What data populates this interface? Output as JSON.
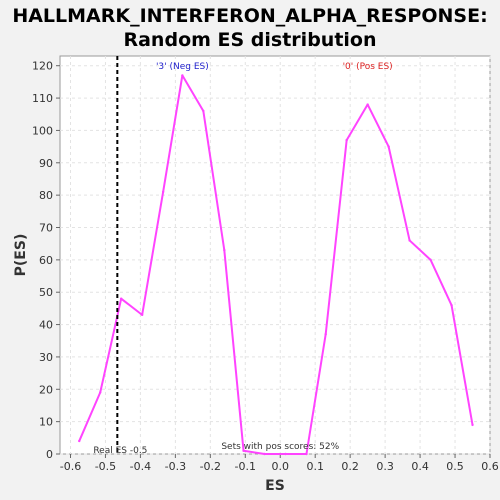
{
  "chart_data": {
    "type": "line",
    "title_lines": [
      "HALLMARK_INTERFERON_ALPHA_RESPONSE:",
      "Random ES distribution"
    ],
    "xlabel": "ES",
    "ylabel": "P(ES)",
    "xlim": [
      -0.63,
      0.6
    ],
    "ylim": [
      0,
      123
    ],
    "x_ticks": [
      -0.6,
      -0.5,
      -0.4,
      -0.3,
      -0.2,
      -0.1,
      0.0,
      0.1,
      0.2,
      0.3,
      0.4,
      0.5,
      0.6
    ],
    "x_tick_labels": [
      "-0.6",
      "-0.5",
      "-0.4",
      "-0.3",
      "-0.2",
      "-0.1",
      "0.0",
      "0.1",
      "0.2",
      "0.3",
      "0.4",
      "0.5",
      "0.6"
    ],
    "y_ticks": [
      0,
      10,
      20,
      30,
      40,
      50,
      60,
      70,
      80,
      90,
      100,
      110,
      120
    ],
    "y_tick_labels": [
      "0",
      "10",
      "20",
      "30",
      "40",
      "50",
      "60",
      "70",
      "80",
      "90",
      "100",
      "110",
      "120"
    ],
    "grid": true,
    "series": [
      {
        "color": "#ff44ff",
        "x": [
          -0.575,
          -0.515,
          -0.455,
          -0.395,
          -0.335,
          -0.28,
          -0.22,
          -0.16,
          -0.105,
          -0.045,
          0.015,
          0.075,
          0.13,
          0.19,
          0.25,
          0.31,
          0.37,
          0.43,
          0.49,
          0.55
        ],
        "y": [
          4,
          19,
          48,
          43,
          81,
          117,
          106,
          63,
          1,
          0,
          0,
          0,
          37,
          97,
          108,
          95,
          66,
          60,
          46,
          9
        ]
      }
    ],
    "real_es": {
      "x": -0.466,
      "label": "Real ES -0.5",
      "color": "#000000"
    },
    "annotations": [
      {
        "text": "'3' (Neg ES)",
        "color": "#2222cc",
        "x": -0.28,
        "y": 119
      },
      {
        "text": "'0' (Pos ES)",
        "color": "#dd2222",
        "x": 0.25,
        "y": 119
      },
      {
        "text": "Sets with pos scores: 52%",
        "color": "#333333",
        "x": 0.0,
        "y": 1.5
      }
    ]
  }
}
